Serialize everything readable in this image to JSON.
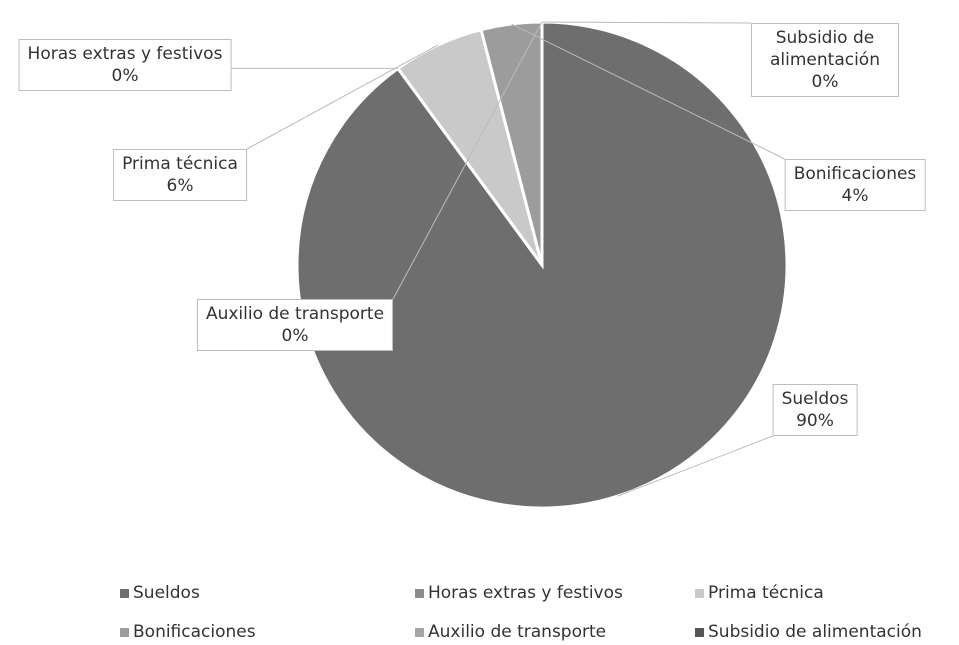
{
  "chart_data": {
    "type": "pie",
    "categories": [
      "Sueldos",
      "Horas extras y festivos",
      "Prima técnica",
      "Bonificaciones",
      "Auxilio de transporte",
      "Subsidio de alimentación"
    ],
    "values": [
      90,
      0,
      6,
      4,
      0,
      0
    ],
    "value_labels": [
      "90%",
      "0%",
      "6%",
      "4%",
      "0%",
      "0%"
    ],
    "colors": [
      "#6e6e6e",
      "#8c8c8c",
      "#c9c9c9",
      "#9c9c9c",
      "#a5a5a5",
      "#555555"
    ],
    "legend": "bottom"
  }
}
